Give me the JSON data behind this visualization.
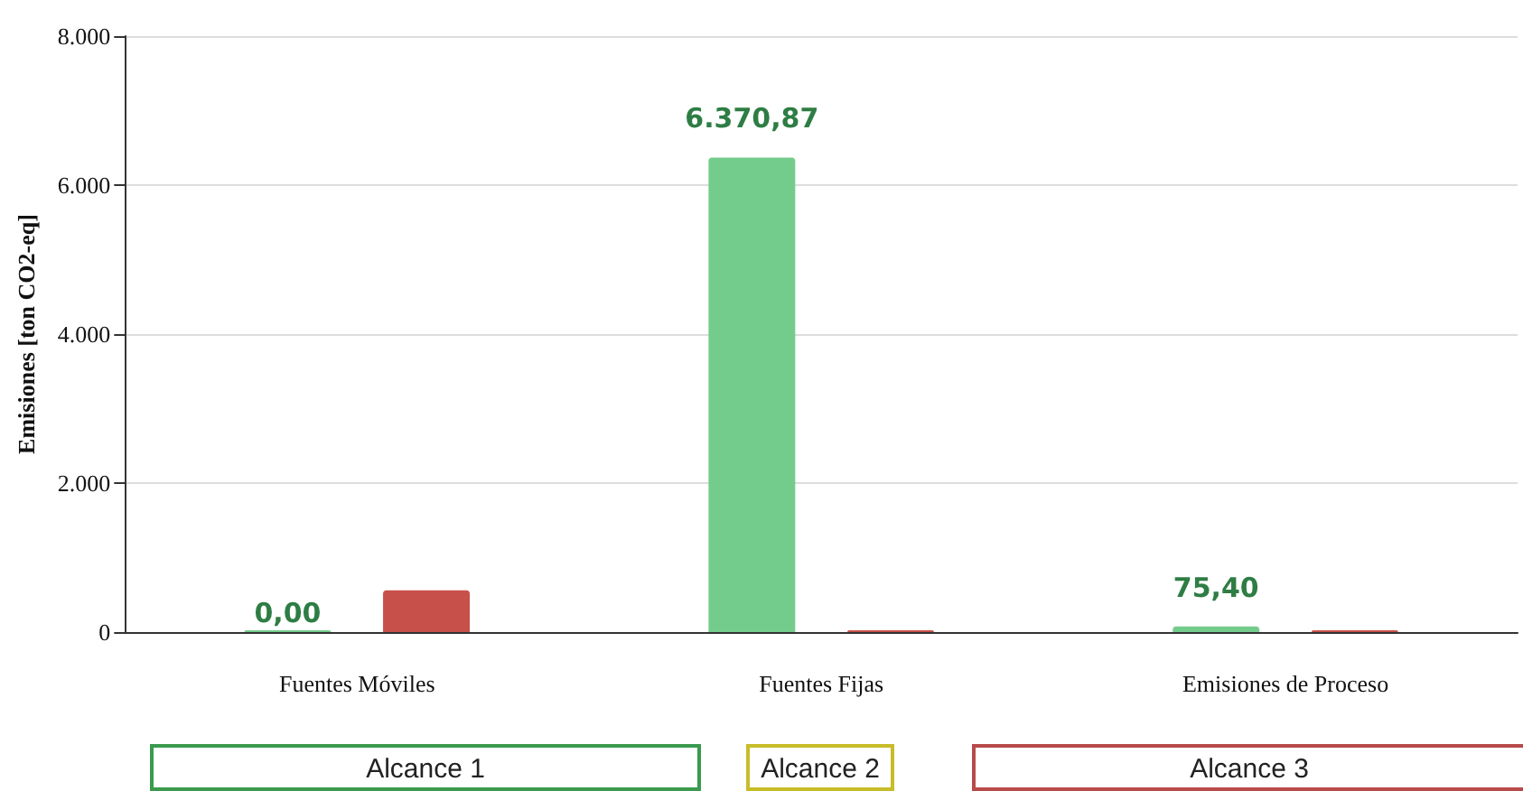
{
  "chart_data": {
    "type": "bar",
    "ylabel": "Emisiones [ton CO2-eq]",
    "categories": [
      "Fuentes Móviles",
      "Fuentes Fijas",
      "Emisiones de Proceso"
    ],
    "series": [
      {
        "color": "#74cc8c",
        "values": [
          0,
          6370.87,
          75.4
        ],
        "value_labels": [
          "0,00",
          "6.370,87",
          "75,40"
        ]
      },
      {
        "color": "#c8504a",
        "values": [
          560,
          0,
          0
        ]
      }
    ],
    "ylim": [
      0,
      8000
    ],
    "yticks": [
      {
        "value": 0,
        "label": "0"
      },
      {
        "value": 2000,
        "label": "2.000"
      },
      {
        "value": 4000,
        "label": "4.000"
      },
      {
        "value": 6000,
        "label": "6.000"
      },
      {
        "value": 8000,
        "label": "8.000"
      }
    ],
    "grid": "y",
    "annotations": [
      "Alcance 1",
      "Alcance 2",
      "Alcance 3"
    ]
  }
}
